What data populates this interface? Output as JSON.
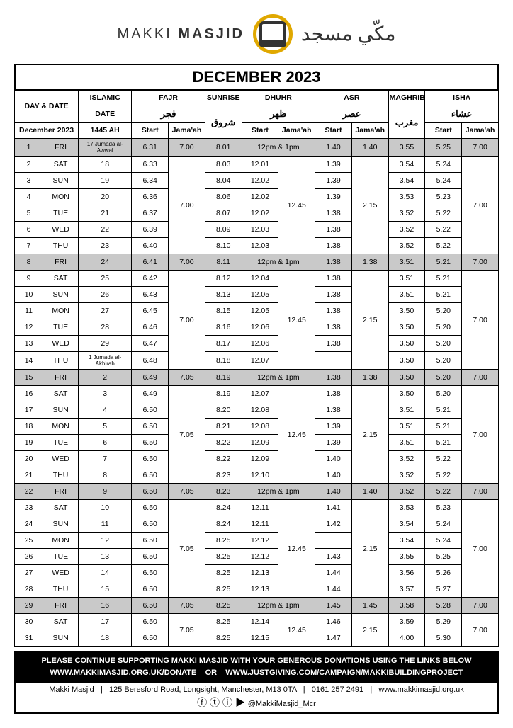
{
  "brand": {
    "en_light": "MAKKI",
    "en_bold": "MASJID",
    "ar": "مكّي مسجد"
  },
  "month_title": "DECEMBER 2023",
  "head": {
    "daydate": "DAY & DATE",
    "islamic": "ISLAMIC",
    "fajr": "FAJR",
    "sunrise": "SUNRISE",
    "dhuhr": "DHUHR",
    "asr": "ASR",
    "maghrib": "MAGHRIB",
    "isha": "ISHA",
    "date": "DATE",
    "fajr_ar": "فجر",
    "sunrise_ar": "شروق",
    "dhuhr_ar": "ظهر",
    "asr_ar": "عصر",
    "maghrib_ar": "مغرب",
    "isha_ar": "عشاء",
    "monthline": "December 2023",
    "hijri": "1445 AH",
    "start": "Start",
    "jamaah": "Jama'ah"
  },
  "fri_dhuhr": "12pm & 1pm",
  "rows": [
    {
      "d": "1",
      "w": "FRI",
      "i": "17 Jumada al-Awwal",
      "is": true,
      "fs": "6.31",
      "fj": "7.00",
      "sr": "8.01",
      "fri": true,
      "as": "1.40",
      "aj": "1.40",
      "mg": "3.55",
      "is_": "5.25",
      "ij": "7.00",
      "sh": true
    },
    {
      "d": "2",
      "w": "SAT",
      "i": "18",
      "fs": "6.33",
      "sr": "8.03",
      "ds": "12.01",
      "as": "1.39",
      "mg": "3.54",
      "is_": "5.24",
      "g": "A"
    },
    {
      "d": "3",
      "w": "SUN",
      "i": "19",
      "fs": "6.34",
      "sr": "8.04",
      "ds": "12.02",
      "as": "1.39",
      "mg": "3.54",
      "is_": "5.24",
      "g": "A"
    },
    {
      "d": "4",
      "w": "MON",
      "i": "20",
      "fs": "6.36",
      "sr": "8.06",
      "ds": "12.02",
      "as": "1.39",
      "mg": "3.53",
      "is_": "5.23",
      "g": "A"
    },
    {
      "d": "5",
      "w": "TUE",
      "i": "21",
      "fs": "6.37",
      "sr": "8.07",
      "ds": "12.02",
      "as": "1.38",
      "mg": "3.52",
      "is_": "5.22",
      "g": "A"
    },
    {
      "d": "6",
      "w": "WED",
      "i": "22",
      "fs": "6.39",
      "sr": "8.09",
      "ds": "12.03",
      "as": "1.38",
      "mg": "3.52",
      "is_": "5.22",
      "g": "A"
    },
    {
      "d": "7",
      "w": "THU",
      "i": "23",
      "fs": "6.40",
      "sr": "8.10",
      "ds": "12.03",
      "as": "1.38",
      "mg": "3.52",
      "is_": "5.22",
      "g": "A"
    },
    {
      "d": "8",
      "w": "FRI",
      "i": "24",
      "fs": "6.41",
      "fj": "7.00",
      "sr": "8.11",
      "fri": true,
      "as": "1.38",
      "aj": "1.38",
      "mg": "3.51",
      "is_": "5.21",
      "ij": "7.00",
      "sh": true
    },
    {
      "d": "9",
      "w": "SAT",
      "i": "25",
      "fs": "6.42",
      "sr": "8.12",
      "ds": "12.04",
      "as": "1.38",
      "mg": "3.51",
      "is_": "5.21",
      "g": "B"
    },
    {
      "d": "10",
      "w": "SUN",
      "i": "26",
      "fs": "6.43",
      "sr": "8.13",
      "ds": "12.05",
      "as": "1.38",
      "mg": "3.51",
      "is_": "5.21",
      "g": "B"
    },
    {
      "d": "11",
      "w": "MON",
      "i": "27",
      "fs": "6.45",
      "sr": "8.15",
      "ds": "12.05",
      "as": "1.38",
      "mg": "3.50",
      "is_": "5.20",
      "g": "B"
    },
    {
      "d": "12",
      "w": "TUE",
      "i": "28",
      "fs": "6.46",
      "sr": "8.16",
      "ds": "12.06",
      "as": "1.38",
      "mg": "3.50",
      "is_": "5.20",
      "g": "B"
    },
    {
      "d": "13",
      "w": "WED",
      "i": "29",
      "fs": "6.47",
      "sr": "8.17",
      "ds": "12.06",
      "as": "1.38",
      "mg": "3.50",
      "is_": "5.20",
      "g": "B"
    },
    {
      "d": "14",
      "w": "THU",
      "i": "1 Jumada al-Akhirah",
      "is": true,
      "fs": "6.48",
      "sr": "8.18",
      "ds": "12.07",
      "as": "",
      "mg": "3.50",
      "is_": "5.20",
      "g": "B"
    },
    {
      "d": "15",
      "w": "FRI",
      "i": "2",
      "fs": "6.49",
      "fj": "7.05",
      "sr": "8.19",
      "fri": true,
      "as": "1.38",
      "aj": "1.38",
      "mg": "3.50",
      "is_": "5.20",
      "ij": "7.00",
      "sh": true
    },
    {
      "d": "16",
      "w": "SAT",
      "i": "3",
      "fs": "6.49",
      "sr": "8.19",
      "ds": "12.07",
      "as": "1.38",
      "mg": "3.50",
      "is_": "5.20",
      "g": "C"
    },
    {
      "d": "17",
      "w": "SUN",
      "i": "4",
      "fs": "6.50",
      "sr": "8.20",
      "ds": "12.08",
      "as": "1.38",
      "mg": "3.51",
      "is_": "5.21",
      "g": "C"
    },
    {
      "d": "18",
      "w": "MON",
      "i": "5",
      "fs": "6.50",
      "sr": "8.21",
      "ds": "12.08",
      "as": "1.39",
      "mg": "3.51",
      "is_": "5.21",
      "g": "C"
    },
    {
      "d": "19",
      "w": "TUE",
      "i": "6",
      "fs": "6.50",
      "sr": "8.22",
      "ds": "12.09",
      "as": "1.39",
      "mg": "3.51",
      "is_": "5.21",
      "g": "C"
    },
    {
      "d": "20",
      "w": "WED",
      "i": "7",
      "fs": "6.50",
      "sr": "8.22",
      "ds": "12.09",
      "as": "1.40",
      "mg": "3.52",
      "is_": "5.22",
      "g": "C"
    },
    {
      "d": "21",
      "w": "THU",
      "i": "8",
      "fs": "6.50",
      "sr": "8.23",
      "ds": "12.10",
      "as": "1.40",
      "mg": "3.52",
      "is_": "5.22",
      "g": "C"
    },
    {
      "d": "22",
      "w": "FRI",
      "i": "9",
      "fs": "6.50",
      "fj": "7.05",
      "sr": "8.23",
      "fri": true,
      "as": "1.40",
      "aj": "1.40",
      "mg": "3.52",
      "is_": "5.22",
      "ij": "7.00",
      "sh": true
    },
    {
      "d": "23",
      "w": "SAT",
      "i": "10",
      "fs": "6.50",
      "sr": "8.24",
      "ds": "12.11",
      "as": "1.41",
      "mg": "3.53",
      "is_": "5.23",
      "g": "D"
    },
    {
      "d": "24",
      "w": "SUN",
      "i": "11",
      "fs": "6.50",
      "sr": "8.24",
      "ds": "12.11",
      "as": "1.42",
      "mg": "3.54",
      "is_": "5.24",
      "g": "D"
    },
    {
      "d": "25",
      "w": "MON",
      "i": "12",
      "fs": "6.50",
      "sr": "8.25",
      "ds": "12.12",
      "as": "",
      "mg": "3.54",
      "is_": "5.24",
      "g": "D"
    },
    {
      "d": "26",
      "w": "TUE",
      "i": "13",
      "fs": "6.50",
      "sr": "8.25",
      "ds": "12.12",
      "as": "1.43",
      "mg": "3.55",
      "is_": "5.25",
      "g": "D"
    },
    {
      "d": "27",
      "w": "WED",
      "i": "14",
      "fs": "6.50",
      "sr": "8.25",
      "ds": "12.13",
      "as": "1.44",
      "mg": "3.56",
      "is_": "5.26",
      "g": "D"
    },
    {
      "d": "28",
      "w": "THU",
      "i": "15",
      "fs": "6.50",
      "sr": "8.25",
      "ds": "12.13",
      "as": "1.44",
      "mg": "3.57",
      "is_": "5.27",
      "g": "D"
    },
    {
      "d": "29",
      "w": "FRI",
      "i": "16",
      "fs": "6.50",
      "fj": "7.05",
      "sr": "8.25",
      "fri": true,
      "as": "1.45",
      "aj": "1.45",
      "mg": "3.58",
      "is_": "5.28",
      "ij": "7.00",
      "sh": true
    },
    {
      "d": "30",
      "w": "SAT",
      "i": "17",
      "fs": "6.50",
      "sr": "8.25",
      "ds": "12.14",
      "as": "1.46",
      "mg": "3.59",
      "is_": "5.29",
      "g": "E"
    },
    {
      "d": "31",
      "w": "SUN",
      "i": "18",
      "fs": "6.50",
      "sr": "8.25",
      "ds": "12.15",
      "as": "1.47",
      "mg": "4.00",
      "is_": "5.30",
      "g": "E"
    }
  ],
  "groups": {
    "A": {
      "fj": "7.00",
      "dj": "12.45",
      "aj": "2.15",
      "ij": "7.00",
      "span": 6
    },
    "B": {
      "fj": "7.00",
      "dj": "12.45",
      "aj": "2.15",
      "ij": "7.00",
      "span": 6
    },
    "C": {
      "fj": "7.05",
      "dj": "12.45",
      "aj": "2.15",
      "ij": "7.00",
      "span": 6
    },
    "D": {
      "fj": "7.05",
      "dj": "12.45",
      "aj": "2.15",
      "ij": "7.00",
      "span": 6
    },
    "E": {
      "fj": "7.05",
      "dj": "12.45",
      "aj": "2.15",
      "ij": "7.00",
      "span": 2
    }
  },
  "footer": {
    "line1": "PLEASE CONTINUE SUPPORTING MAKKI MASJID WITH YOUR GENEROUS DONATIONS USING THE LINKS BELOW",
    "line2": "WWW.MAKKIMASJID.ORG.UK/DONATE    OR    WWW.JUSTGIVING.COM/CAMPAIGN/MAKKIBUILDINGPROJECT",
    "addr": "Makki Masjid   |   125 Beresford Road, Longsight, Manchester, M13 0TA   |   0161 257 2491   |   www.makkimasjid.org.uk",
    "handle": "@MakkiMasjid_Mcr"
  }
}
